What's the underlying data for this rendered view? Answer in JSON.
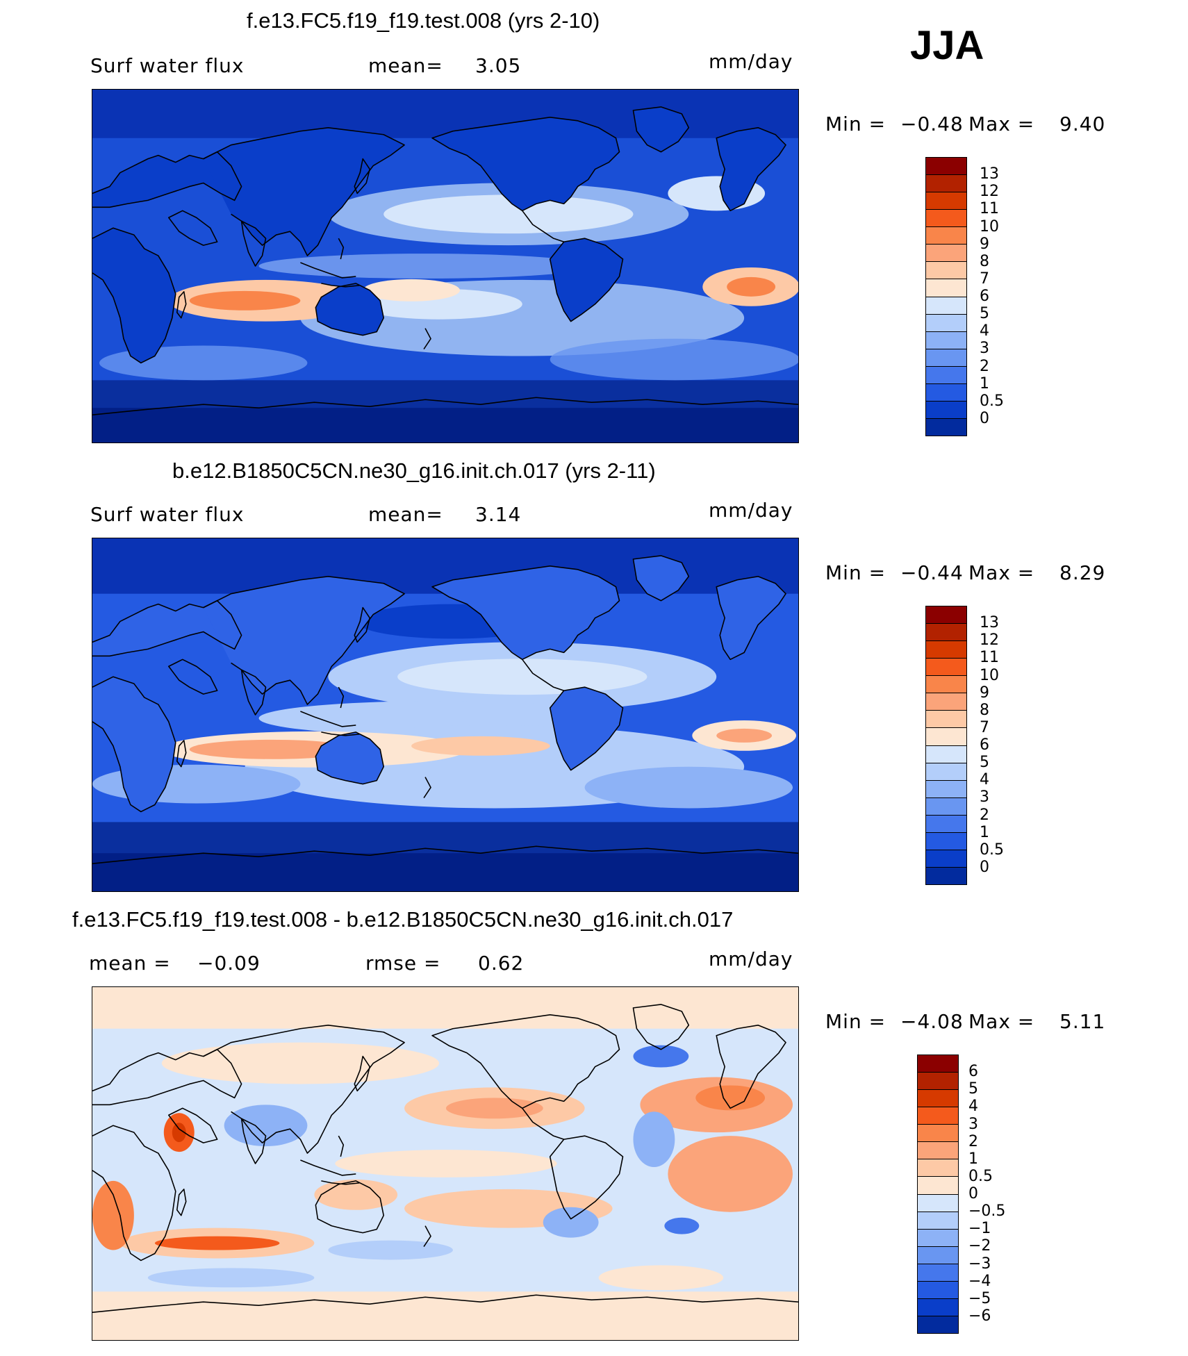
{
  "season": "JJA",
  "panels": [
    {
      "title": "f.e13.FC5.f19_f19.test.008 (yrs 2-10)",
      "left_label": "Surf water flux",
      "mean_label": "mean=",
      "mean_value": "3.05",
      "units": "mm/day",
      "min_label": "Min =",
      "min_value": "−0.48",
      "max_label": "Max =",
      "max_value": "9.40"
    },
    {
      "title": "b.e12.B1850C5CN.ne30_g16.init.ch.017 (yrs 2-11)",
      "left_label": "Surf water flux",
      "mean_label": "mean=",
      "mean_value": "3.14",
      "units": "mm/day",
      "min_label": "Min =",
      "min_value": "−0.44",
      "max_label": "Max =",
      "max_value": "8.29"
    },
    {
      "title": "f.e13.FC5.f19_f19.test.008 - b.e12.B1850C5CN.ne30_g16.init.ch.017",
      "mean_label": "mean =",
      "mean_value": "−0.09",
      "rmse_label": "rmse =",
      "rmse_value": "0.62",
      "units": "mm/day",
      "min_label": "Min =",
      "min_value": "−4.08",
      "max_label": "Max =",
      "max_value": "5.11"
    }
  ],
  "colorbars": {
    "abs": {
      "labels": [
        "13",
        "12",
        "11",
        "10",
        "9",
        "8",
        "7",
        "6",
        "5",
        "4",
        "3",
        "2",
        "1",
        "0.5",
        "0"
      ],
      "colors": [
        "#8b0000",
        "#b22200",
        "#d63a00",
        "#f45a1c",
        "#f9854a",
        "#fba47a",
        "#fdc9a6",
        "#fde6d2",
        "#d6e6fb",
        "#b3cefa",
        "#8db2f6",
        "#6996f1",
        "#4577ec",
        "#245ae2",
        "#0a3ec9",
        "#022b9e"
      ]
    },
    "diff": {
      "labels": [
        "6",
        "5",
        "4",
        "3",
        "2",
        "1",
        "0.5",
        "0",
        "−0.5",
        "−1",
        "−2",
        "−3",
        "−4",
        "−5",
        "−6"
      ],
      "colors": [
        "#8b0000",
        "#b22200",
        "#d63a00",
        "#f45a1c",
        "#f9854a",
        "#fba47a",
        "#fdc9a6",
        "#fde6d2",
        "#d6e6fb",
        "#b3cefa",
        "#8db2f6",
        "#6996f1",
        "#4577ec",
        "#245ae2",
        "#0a3ec9",
        "#022b9e"
      ]
    }
  }
}
